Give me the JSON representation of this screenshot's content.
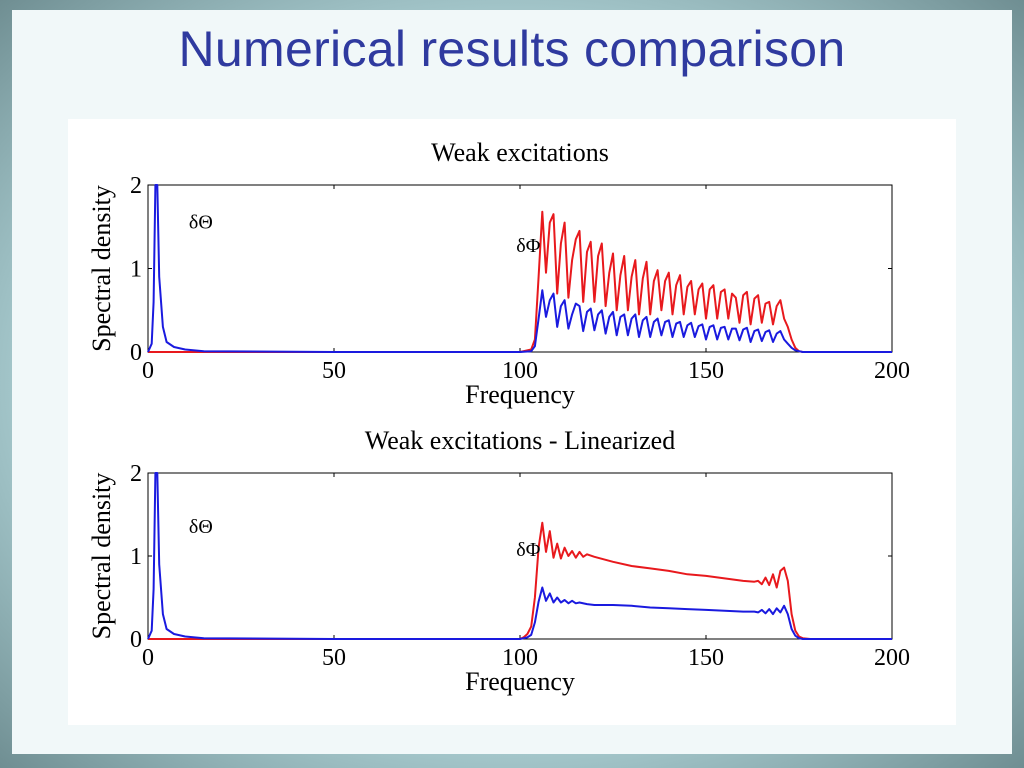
{
  "slide": {
    "title": "Numerical results comparison"
  },
  "colors": {
    "red_series": "#e8191d",
    "blue_series": "#1a1adf",
    "title_color": "#2f3a9f"
  },
  "chart_data": [
    {
      "type": "line",
      "title": "Weak excitations",
      "xlabel": "Frequency",
      "ylabel": "Spectral density",
      "xlim": [
        0,
        200
      ],
      "ylim": [
        0,
        2
      ],
      "xticks": [
        "0",
        "50",
        "100",
        "150",
        "200"
      ],
      "yticks": [
        "0",
        "1",
        "2"
      ],
      "annotations": [
        {
          "text": "δΘ",
          "x": 11,
          "y": 1.48
        },
        {
          "text": "δΦ",
          "x": 99,
          "y": 1.2
        }
      ],
      "series": [
        {
          "color": "red",
          "x": [
            0,
            50,
            100,
            103,
            104,
            105,
            106,
            107,
            108,
            109,
            110,
            111,
            112,
            113,
            114,
            115,
            116,
            117,
            118,
            119,
            120,
            121,
            122,
            123,
            124,
            125,
            126,
            127,
            128,
            129,
            130,
            131,
            132,
            133,
            134,
            135,
            136,
            137,
            138,
            139,
            140,
            141,
            142,
            143,
            144,
            145,
            146,
            147,
            148,
            149,
            150,
            151,
            152,
            153,
            154,
            155,
            156,
            157,
            158,
            159,
            160,
            161,
            162,
            163,
            164,
            165,
            166,
            167,
            168,
            169,
            170,
            171,
            172,
            173,
            174,
            175,
            176,
            177,
            180,
            190,
            200
          ],
          "y": [
            0,
            0,
            0,
            0.03,
            0.15,
            0.9,
            1.68,
            0.95,
            1.55,
            1.65,
            0.7,
            1.3,
            1.55,
            0.65,
            1.1,
            1.35,
            1.45,
            0.6,
            1.2,
            1.32,
            0.6,
            1.15,
            1.3,
            0.55,
            0.95,
            1.18,
            0.5,
            0.92,
            1.15,
            0.5,
            0.9,
            1.1,
            0.45,
            0.88,
            1.08,
            0.45,
            0.85,
            0.98,
            0.5,
            0.85,
            0.95,
            0.45,
            0.8,
            0.92,
            0.45,
            0.78,
            0.85,
            0.45,
            0.75,
            0.82,
            0.4,
            0.75,
            0.8,
            0.4,
            0.72,
            0.75,
            0.4,
            0.7,
            0.65,
            0.35,
            0.68,
            0.72,
            0.33,
            0.64,
            0.68,
            0.35,
            0.58,
            0.6,
            0.33,
            0.55,
            0.62,
            0.4,
            0.3,
            0.15,
            0.05,
            0.01,
            0,
            0,
            0,
            0,
            0
          ]
        },
        {
          "color": "blue",
          "x": [
            0,
            1,
            1.5,
            2,
            2.5,
            3,
            4,
            5,
            7,
            10,
            15,
            50,
            100,
            103,
            104,
            105,
            106,
            107,
            108,
            109,
            110,
            111,
            112,
            113,
            114,
            115,
            116,
            117,
            118,
            119,
            120,
            121,
            122,
            123,
            124,
            125,
            126,
            127,
            128,
            129,
            130,
            131,
            132,
            133,
            134,
            135,
            136,
            137,
            138,
            139,
            140,
            141,
            142,
            143,
            144,
            145,
            146,
            147,
            148,
            149,
            150,
            151,
            152,
            153,
            154,
            155,
            156,
            157,
            158,
            159,
            160,
            161,
            162,
            163,
            164,
            165,
            166,
            167,
            168,
            169,
            170,
            171,
            172,
            173,
            174,
            175,
            176,
            177,
            180,
            190,
            200
          ],
          "y": [
            0,
            0.1,
            0.6,
            2,
            2,
            0.9,
            0.3,
            0.12,
            0.06,
            0.03,
            0.01,
            0,
            0,
            0.01,
            0.07,
            0.4,
            0.74,
            0.42,
            0.62,
            0.7,
            0.3,
            0.55,
            0.62,
            0.28,
            0.45,
            0.58,
            0.55,
            0.25,
            0.48,
            0.52,
            0.26,
            0.45,
            0.5,
            0.22,
            0.42,
            0.48,
            0.2,
            0.42,
            0.45,
            0.2,
            0.4,
            0.45,
            0.18,
            0.38,
            0.42,
            0.18,
            0.36,
            0.4,
            0.2,
            0.36,
            0.38,
            0.18,
            0.34,
            0.36,
            0.18,
            0.32,
            0.35,
            0.18,
            0.31,
            0.33,
            0.15,
            0.3,
            0.32,
            0.15,
            0.29,
            0.3,
            0.15,
            0.28,
            0.28,
            0.14,
            0.27,
            0.29,
            0.12,
            0.25,
            0.27,
            0.13,
            0.24,
            0.26,
            0.12,
            0.22,
            0.25,
            0.15,
            0.1,
            0.05,
            0.02,
            0.01,
            0,
            0,
            0,
            0,
            0
          ]
        }
      ]
    },
    {
      "type": "line",
      "title": "Weak excitations - Linearized",
      "xlabel": "Frequency",
      "ylabel": "Spectral density",
      "xlim": [
        0,
        200
      ],
      "ylim": [
        0,
        2
      ],
      "xticks": [
        "0",
        "50",
        "100",
        "150",
        "200"
      ],
      "yticks": [
        "0",
        "1",
        "2"
      ],
      "annotations": [
        {
          "text": "δΘ",
          "x": 11,
          "y": 1.28
        },
        {
          "text": "δΦ",
          "x": 99,
          "y": 1.0
        }
      ],
      "series": [
        {
          "color": "red",
          "x": [
            0,
            50,
            100,
            101,
            102,
            103,
            104,
            105,
            106,
            107,
            108,
            109,
            110,
            111,
            112,
            113,
            114,
            115,
            116,
            117,
            118,
            120,
            125,
            130,
            135,
            140,
            145,
            150,
            155,
            160,
            163,
            164,
            165,
            166,
            167,
            168,
            169,
            170,
            171,
            172,
            173,
            174,
            175,
            176,
            178,
            180,
            190,
            200
          ],
          "y": [
            0,
            0,
            0,
            0.02,
            0.06,
            0.15,
            0.5,
            1.1,
            1.4,
            1.05,
            1.3,
            0.98,
            1.15,
            0.97,
            1.1,
            1.0,
            1.06,
            0.98,
            1.05,
            0.99,
            1.02,
            0.99,
            0.93,
            0.88,
            0.85,
            0.82,
            0.78,
            0.76,
            0.73,
            0.7,
            0.69,
            0.7,
            0.66,
            0.74,
            0.65,
            0.78,
            0.62,
            0.82,
            0.86,
            0.7,
            0.3,
            0.1,
            0.03,
            0.01,
            0,
            0,
            0,
            0
          ]
        },
        {
          "color": "blue",
          "x": [
            0,
            1,
            1.5,
            2,
            2.5,
            3,
            4,
            5,
            7,
            10,
            15,
            50,
            100,
            101,
            102,
            103,
            104,
            105,
            106,
            107,
            108,
            109,
            110,
            111,
            112,
            113,
            114,
            115,
            116,
            118,
            120,
            125,
            130,
            135,
            140,
            145,
            150,
            155,
            160,
            163,
            164,
            165,
            166,
            167,
            168,
            169,
            170,
            171,
            172,
            173,
            174,
            175,
            176,
            178,
            180,
            190,
            200
          ],
          "y": [
            0,
            0.1,
            0.6,
            2,
            2,
            0.9,
            0.3,
            0.12,
            0.06,
            0.03,
            0.01,
            0,
            0,
            0.01,
            0.02,
            0.05,
            0.2,
            0.45,
            0.62,
            0.46,
            0.55,
            0.44,
            0.5,
            0.44,
            0.47,
            0.43,
            0.46,
            0.43,
            0.44,
            0.42,
            0.41,
            0.41,
            0.4,
            0.38,
            0.37,
            0.36,
            0.35,
            0.34,
            0.33,
            0.33,
            0.32,
            0.35,
            0.31,
            0.36,
            0.3,
            0.37,
            0.32,
            0.4,
            0.3,
            0.12,
            0.04,
            0.01,
            0,
            0,
            0,
            0,
            0
          ]
        }
      ]
    }
  ]
}
